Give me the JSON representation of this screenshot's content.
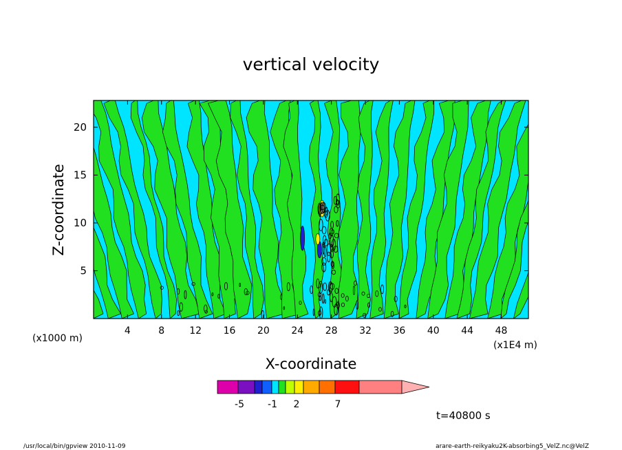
{
  "chart_data": {
    "type": "heatmap",
    "title": "vertical velocity",
    "xlabel": "X-coordinate",
    "ylabel": "Z-coordinate",
    "x_unit_left": "(x1000 m)",
    "x_unit_right": "(x1E4 m)",
    "x_ticks": [
      "4",
      "8",
      "12",
      "16",
      "20",
      "24",
      "28",
      "32",
      "36",
      "40",
      "44",
      "48"
    ],
    "y_ticks": [
      "5",
      "10",
      "15",
      "20"
    ],
    "xlim": [
      0,
      51.2
    ],
    "ylim": [
      0,
      22.8
    ],
    "colorbar": {
      "labels": [
        "-5",
        "-1",
        "2",
        "7"
      ],
      "colors": [
        "#dd00aa",
        "#7a10c0",
        "#2020d0",
        "#1060ff",
        "#00e5ff",
        "#20e020",
        "#c0ff00",
        "#ffee00",
        "#ffaa00",
        "#ff7000",
        "#ff1010",
        "#ff8080",
        "#ffb0b0"
      ]
    },
    "field_colors": {
      "background": "#00e5ff",
      "positive": "#20e020",
      "strong_positive": "#ffee00",
      "negative": "#2020d0",
      "strong_negative": "#7a10c0"
    },
    "time_label": "t=40800 s"
  },
  "footer": {
    "left": "/usr/local/bin/gpview  2010-11-09",
    "right": "arare-earth-reikyaku2K-absorbing5_VelZ.nc@VelZ"
  }
}
